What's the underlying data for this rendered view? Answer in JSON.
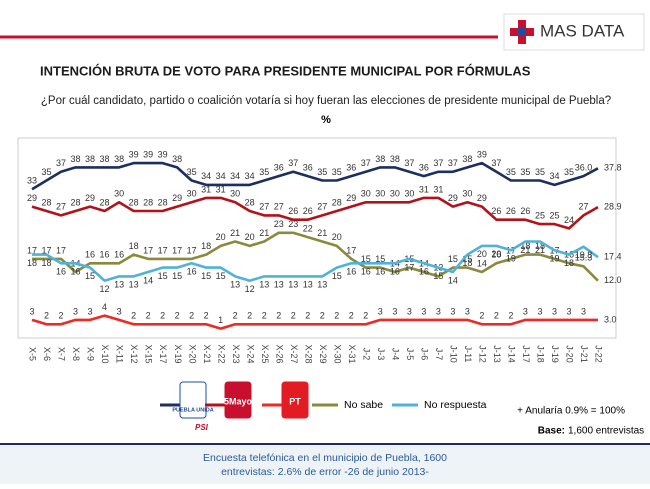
{
  "brand": "MAS DATA",
  "chart_data": {
    "type": "line",
    "title": "INTENCIÓN BRUTA DE VOTO PARA PRESIDENTE MUNICIPAL POR FÓRMULAS",
    "subtitle": "¿Por cuál candidato, partido o coalición votaría si hoy fueran las elecciones de presidente municipal de Puebla?",
    "unit_label": "%",
    "categories": [
      "X-5",
      "X-6",
      "X-7",
      "X-8",
      "X-9",
      "X-10",
      "X-11",
      "X-12",
      "X-15",
      "X-17",
      "X-19",
      "X-20",
      "X-21",
      "X-22",
      "X-23",
      "X-24",
      "X-25",
      "X-26",
      "X-27",
      "X-28",
      "X-29",
      "X-30",
      "X-31",
      "J-2",
      "J-3",
      "J-4",
      "J-5",
      "J-6",
      "J-7",
      "J-10",
      "J-11",
      "J-12",
      "J-13",
      "J-14",
      "J-17",
      "J-18",
      "J-19",
      "J-20",
      "J-21",
      "J-22"
    ],
    "ylim": [
      0,
      42
    ],
    "series": [
      {
        "name": "PUEBLA UNIDA",
        "color": "#1d2f5e",
        "label_pos": "above",
        "values": [
          33,
          35,
          37,
          38,
          38,
          38,
          38,
          39,
          39,
          39,
          38,
          35,
          34,
          34,
          34,
          34,
          35,
          36,
          37,
          36,
          35,
          35,
          36,
          37,
          38,
          38,
          37,
          36,
          37,
          37,
          38,
          39,
          37,
          35,
          35,
          35,
          34,
          35,
          36,
          37.8
        ],
        "value_labels": [
          "33",
          "35",
          "37",
          "38",
          "38",
          "38",
          "38",
          "39",
          "39",
          "39",
          "38",
          "35",
          "34",
          "34",
          "34",
          "34",
          "35",
          "36",
          "37",
          "36",
          "35",
          "35",
          "36",
          "37",
          "38",
          "38",
          "37",
          "36",
          "37",
          "37",
          "38",
          "39",
          "37",
          "35",
          "35",
          "35",
          "34",
          "35",
          "36.0",
          "37.8"
        ]
      },
      {
        "name": "5Mayo",
        "color": "#b3121b",
        "label_pos": "above",
        "values": [
          29,
          28,
          27,
          28,
          29,
          28,
          30,
          28,
          28,
          28,
          29,
          30,
          31,
          31,
          30,
          28,
          27,
          27,
          26,
          26,
          27,
          28,
          29,
          30,
          30,
          30,
          30,
          31,
          31,
          29,
          30,
          29,
          26,
          26,
          26,
          25,
          25,
          24,
          27,
          28.9
        ]
      },
      {
        "name": "PT",
        "color": "#ee2a24",
        "label_pos": "above",
        "values": [
          3,
          2,
          2,
          3,
          3,
          4,
          3,
          2,
          2,
          2,
          2,
          2,
          2,
          1,
          2,
          2,
          2,
          2,
          2,
          2,
          2,
          2,
          2,
          2,
          3,
          3,
          3,
          3,
          3,
          3,
          3,
          2,
          2,
          2,
          3,
          3,
          3,
          3,
          3,
          3.0
        ],
        "value_labels": [
          "3",
          "2",
          "2",
          "3",
          "3",
          "4",
          "3",
          "2",
          "2",
          "2",
          "2",
          "2",
          "2",
          "1",
          "2",
          "2",
          "2",
          "2",
          "2",
          "2",
          "2",
          "2",
          "2",
          "2",
          "3",
          "3",
          "3",
          "3",
          "3",
          "3",
          "3",
          "2",
          "2",
          "2",
          "3",
          "3",
          "3",
          "3",
          "3",
          "3.0"
        ]
      },
      {
        "name": "No sabe",
        "color": "#8a8a3c",
        "label_pos": "above",
        "values": [
          17,
          17,
          17,
          14,
          16,
          16,
          16,
          18,
          17,
          17,
          17,
          17,
          18,
          20,
          21,
          20,
          21,
          23,
          23,
          22,
          21,
          20,
          17,
          15,
          15,
          14,
          15,
          14,
          13,
          15,
          15,
          14,
          16,
          17,
          18,
          18,
          17,
          16,
          15.3,
          12.0
        ],
        "value_labels": [
          "17",
          "17",
          "17",
          "14",
          "16",
          "16",
          "16",
          "18",
          "17",
          "17",
          "17",
          "17",
          "18",
          "20",
          "21",
          "20",
          "21",
          "23",
          "23",
          "22",
          "21",
          "20",
          "17",
          "15",
          "15",
          "14",
          "15",
          "14",
          "13",
          "15",
          "15",
          "14",
          "16",
          "17",
          "18",
          "18",
          "17",
          "16",
          "15.3",
          "12.0"
        ]
      },
      {
        "name": "No respuesta",
        "color": "#4fb3d9",
        "label_pos": "below",
        "values": [
          18,
          18,
          16,
          16,
          15,
          12,
          13,
          13,
          14,
          15,
          15,
          16,
          15,
          15,
          13,
          12,
          13,
          13,
          13,
          13,
          13,
          15,
          16,
          16,
          16,
          16,
          17,
          16,
          15,
          14,
          18,
          20,
          20,
          19,
          21,
          21,
          19,
          18,
          19.8,
          17.4
        ]
      }
    ],
    "logo_extra": "PSI",
    "note": "+ Anularía 0.9% = 100%",
    "base_label": "Base:",
    "base_text": "1,600 entrevistas",
    "footer": [
      "Encuesta telefónica en el municipio de Puebla, 1600",
      "entrevistas: 2.6% de error -26 de junio 2013-"
    ]
  }
}
